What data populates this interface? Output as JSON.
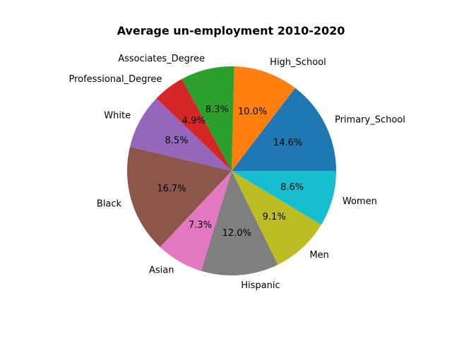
{
  "chart_data": {
    "type": "pie",
    "title": "Average un-employment 2010-2020",
    "slices": [
      {
        "label": "Primary_School",
        "value": 14.6,
        "pct_text": "14.6%",
        "color": "#1f77b4"
      },
      {
        "label": "High_School",
        "value": 10.0,
        "pct_text": "10.0%",
        "color": "#ff7f0e"
      },
      {
        "label": "Associates_Degree",
        "value": 8.3,
        "pct_text": "8.3%",
        "color": "#2ca02c"
      },
      {
        "label": "Professional_Degree",
        "value": 4.9,
        "pct_text": "4.9%",
        "color": "#d62728"
      },
      {
        "label": "White",
        "value": 8.5,
        "pct_text": "8.5%",
        "color": "#9467bd"
      },
      {
        "label": "Black",
        "value": 16.7,
        "pct_text": "16.7%",
        "color": "#8c564b"
      },
      {
        "label": "Asian",
        "value": 7.3,
        "pct_text": "7.3%",
        "color": "#e377c2"
      },
      {
        "label": "Hispanic",
        "value": 12.0,
        "pct_text": "12.0%",
        "color": "#7f7f7f"
      },
      {
        "label": "Men",
        "value": 9.1,
        "pct_text": "9.1%",
        "color": "#bcbd22"
      },
      {
        "label": "Women",
        "value": 8.6,
        "pct_text": "8.6%",
        "color": "#17becf"
      }
    ],
    "start_angle_deg": 0,
    "direction": "counterclockwise",
    "legend": "none"
  }
}
